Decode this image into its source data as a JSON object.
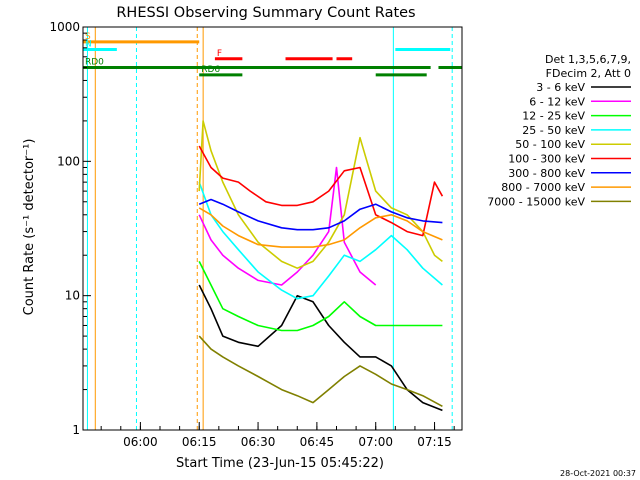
{
  "chart_data": {
    "type": "line",
    "title": "RHESSI Observing Summary Count Rates",
    "xlabel": "Start Time (23-Jun-15 05:45:22)",
    "ylabel": "Count Rate (s⁻¹ detector⁻¹)",
    "y_scale": "log",
    "ylim": [
      1,
      1000
    ],
    "xlim": [
      "05:45:22",
      "07:22:00"
    ],
    "x_ticks": [
      "06:00",
      "06:15",
      "06:30",
      "06:45",
      "07:00",
      "07:15"
    ],
    "y_ticks": [
      "1",
      "10",
      "100",
      "1000"
    ],
    "legend_header": [
      "Det 1,3,5,6,7,9,",
      "FDecim 2, Att 0"
    ],
    "legend_placement": "right",
    "series": [
      {
        "name": "3 - 6 keV",
        "color": "#000000",
        "x": [
          "06:15",
          "06:18",
          "06:21",
          "06:25",
          "06:30",
          "06:36",
          "06:40",
          "06:44",
          "06:48",
          "06:52",
          "06:56",
          "07:00",
          "07:04",
          "07:08",
          "07:12",
          "07:17"
        ],
        "y": [
          12,
          8,
          5,
          4.5,
          4.2,
          6,
          10,
          9,
          6,
          4.5,
          3.5,
          3.5,
          3,
          2,
          1.6,
          1.4
        ]
      },
      {
        "name": "6 - 12 keV",
        "color": "#ff00ff",
        "x": [
          "06:15",
          "06:18",
          "06:21",
          "06:25",
          "06:30",
          "06:36",
          "06:40",
          "06:44",
          "06:48",
          "06:50",
          "06:52",
          "06:56",
          "07:00"
        ],
        "y": [
          40,
          26,
          20,
          16,
          13,
          12,
          15,
          20,
          30,
          90,
          25,
          15,
          12
        ]
      },
      {
        "name": "12 - 25 keV",
        "color": "#00ff00",
        "x": [
          "06:15",
          "06:18",
          "06:21",
          "06:25",
          "06:30",
          "06:36",
          "06:40",
          "06:44",
          "06:48",
          "06:52",
          "06:56",
          "07:00",
          "07:05",
          "07:10",
          "07:17"
        ],
        "y": [
          18,
          12,
          8,
          7,
          6,
          5.5,
          5.5,
          6,
          7,
          9,
          7,
          6,
          6,
          6,
          6
        ]
      },
      {
        "name": "25 - 50 keV",
        "color": "#00ffff",
        "x": [
          "06:15",
          "06:18",
          "06:21",
          "06:25",
          "06:30",
          "06:36",
          "06:40",
          "06:44",
          "06:48",
          "06:52",
          "06:56",
          "07:00",
          "07:04",
          "07:08",
          "07:12",
          "07:17"
        ],
        "y": [
          70,
          40,
          30,
          22,
          15,
          11,
          9.5,
          10,
          14,
          20,
          18,
          22,
          28,
          22,
          16,
          12
        ]
      },
      {
        "name": "50 - 100 keV",
        "color": "#cccc00",
        "x": [
          "06:15",
          "06:16",
          "06:18",
          "06:21",
          "06:25",
          "06:30",
          "06:36",
          "06:40",
          "06:44",
          "06:48",
          "06:52",
          "06:56",
          "07:00",
          "07:04",
          "07:08",
          "07:12",
          "07:15",
          "07:17"
        ],
        "y": [
          60,
          200,
          120,
          70,
          40,
          25,
          18,
          16,
          18,
          25,
          40,
          150,
          60,
          45,
          40,
          30,
          20,
          18
        ]
      },
      {
        "name": "100 - 300 keV",
        "color": "#ff0000",
        "x": [
          "06:15",
          "06:18",
          "06:21",
          "06:25",
          "06:28",
          "06:32",
          "06:36",
          "06:40",
          "06:44",
          "06:48",
          "06:52",
          "06:56",
          "07:00",
          "07:04",
          "07:08",
          "07:12",
          "07:15",
          "07:17"
        ],
        "y": [
          130,
          90,
          75,
          70,
          60,
          50,
          47,
          47,
          50,
          60,
          85,
          90,
          40,
          35,
          30,
          28,
          70,
          55
        ]
      },
      {
        "name": "300 - 800 keV",
        "color": "#0000ff",
        "x": [
          "06:15",
          "06:18",
          "06:21",
          "06:25",
          "06:30",
          "06:36",
          "06:40",
          "06:44",
          "06:48",
          "06:52",
          "06:56",
          "07:00",
          "07:04",
          "07:08",
          "07:12",
          "07:17"
        ],
        "y": [
          48,
          52,
          48,
          42,
          36,
          32,
          31,
          31,
          32,
          36,
          44,
          48,
          42,
          38,
          36,
          35
        ]
      },
      {
        "name": "800 - 7000 keV",
        "color": "#ff9900",
        "x": [
          "06:15",
          "06:18",
          "06:21",
          "06:25",
          "06:30",
          "06:36",
          "06:40",
          "06:44",
          "06:48",
          "06:52",
          "06:56",
          "07:00",
          "07:04",
          "07:08",
          "07:12",
          "07:17"
        ],
        "y": [
          45,
          40,
          33,
          28,
          24,
          23,
          23,
          23,
          24,
          26,
          32,
          38,
          40,
          36,
          30,
          26
        ]
      },
      {
        "name": "7000 - 15000 keV",
        "color": "#808000",
        "x": [
          "06:15",
          "06:18",
          "06:21",
          "06:25",
          "06:30",
          "06:36",
          "06:40",
          "06:44",
          "06:48",
          "06:52",
          "06:56",
          "07:00",
          "07:04",
          "07:08",
          "07:12",
          "07:17"
        ],
        "y": [
          5,
          4,
          3.5,
          3,
          2.5,
          2,
          1.8,
          1.6,
          2,
          2.5,
          3,
          2.6,
          2.2,
          2,
          1.8,
          1.5
        ]
      }
    ],
    "flag_bars": [
      {
        "label": "S",
        "color": "#ff9900",
        "level": 775,
        "segments": [
          [
            "05:45:22",
            "06:15:00"
          ]
        ]
      },
      {
        "label": "N",
        "color": "#00ffff",
        "level": 680,
        "segments": [
          [
            "05:45:22",
            "05:54:00"
          ],
          [
            "07:05:00",
            "07:19:00"
          ]
        ]
      },
      {
        "label": "F",
        "color": "#ff0000",
        "level": 580,
        "segments": [
          [
            "06:19:00",
            "06:26:00"
          ],
          [
            "06:37:00",
            "06:49:00"
          ],
          [
            "06:50:00",
            "06:54:00"
          ]
        ]
      },
      {
        "label": "RD0",
        "color": "#008000",
        "level": 500,
        "segments": [
          [
            "05:45:22",
            "07:14:00"
          ],
          [
            "07:16:00",
            "07:22:00"
          ]
        ]
      },
      {
        "label": "RD6",
        "color": "#008000",
        "level": 440,
        "segments": [
          [
            "06:15:00",
            "06:26:00"
          ],
          [
            "07:00:00",
            "07:13:00"
          ]
        ]
      }
    ],
    "footer_date": "28-Oct-2021 00:37"
  }
}
